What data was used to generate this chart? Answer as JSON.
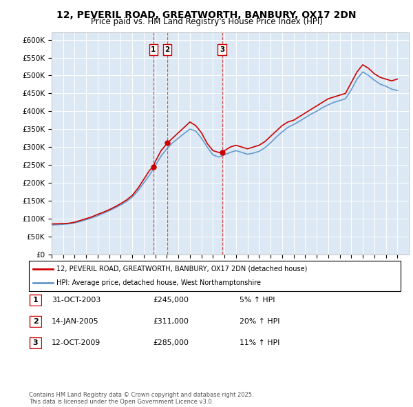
{
  "title": "12, PEVERIL ROAD, GREATWORTH, BANBURY, OX17 2DN",
  "subtitle": "Price paid vs. HM Land Registry's House Price Index (HPI)",
  "legend_line1": "12, PEVERIL ROAD, GREATWORTH, BANBURY, OX17 2DN (detached house)",
  "legend_line2": "HPI: Average price, detached house, West Northamptonshire",
  "xmin": 1995.0,
  "xmax": 2026.0,
  "ylim_max": 620000,
  "plot_bg_color": "#dce9f5",
  "red_line_color": "#cc0000",
  "blue_line_color": "#6699cc",
  "purchase_dates": [
    2003.83,
    2005.04,
    2009.79
  ],
  "purchase_labels": [
    "1",
    "2",
    "3"
  ],
  "purchase_prices": [
    245000,
    311000,
    285000
  ],
  "purchase_date_str": [
    "31-OCT-2003",
    "14-JAN-2005",
    "12-OCT-2009"
  ],
  "purchase_pct": [
    "5%",
    "20%",
    "11%"
  ],
  "footer": "Contains HM Land Registry data © Crown copyright and database right 2025.\nThis data is licensed under the Open Government Licence v3.0.",
  "red_data": {
    "x": [
      1995.0,
      1995.5,
      1996.0,
      1996.5,
      1997.0,
      1997.5,
      1998.0,
      1998.5,
      1999.0,
      1999.5,
      2000.0,
      2000.5,
      2001.0,
      2001.5,
      2002.0,
      2002.5,
      2003.0,
      2003.5,
      2003.83,
      2004.0,
      2004.5,
      2005.04,
      2005.5,
      2006.0,
      2006.5,
      2007.0,
      2007.5,
      2008.0,
      2008.5,
      2009.0,
      2009.5,
      2009.79,
      2010.0,
      2010.5,
      2011.0,
      2011.5,
      2012.0,
      2012.5,
      2013.0,
      2013.5,
      2014.0,
      2014.5,
      2015.0,
      2015.5,
      2016.0,
      2016.5,
      2017.0,
      2017.5,
      2018.0,
      2018.5,
      2019.0,
      2019.5,
      2020.0,
      2020.5,
      2021.0,
      2021.5,
      2022.0,
      2022.5,
      2023.0,
      2023.5,
      2024.0,
      2024.5,
      2025.0
    ],
    "y": [
      85000,
      85500,
      86000,
      87000,
      90000,
      95000,
      100000,
      105000,
      112000,
      118000,
      125000,
      133000,
      142000,
      152000,
      165000,
      185000,
      210000,
      235000,
      245000,
      260000,
      290000,
      311000,
      325000,
      340000,
      355000,
      370000,
      360000,
      340000,
      310000,
      290000,
      285000,
      285000,
      290000,
      300000,
      305000,
      300000,
      295000,
      300000,
      305000,
      315000,
      330000,
      345000,
      360000,
      370000,
      375000,
      385000,
      395000,
      405000,
      415000,
      425000,
      435000,
      440000,
      445000,
      450000,
      480000,
      510000,
      530000,
      520000,
      505000,
      495000,
      490000,
      485000,
      490000
    ]
  },
  "blue_data": {
    "x": [
      1995.0,
      1995.5,
      1996.0,
      1996.5,
      1997.0,
      1997.5,
      1998.0,
      1998.5,
      1999.0,
      1999.5,
      2000.0,
      2000.5,
      2001.0,
      2001.5,
      2002.0,
      2002.5,
      2003.0,
      2003.5,
      2004.0,
      2004.5,
      2005.0,
      2005.5,
      2006.0,
      2006.5,
      2007.0,
      2007.5,
      2008.0,
      2008.5,
      2009.0,
      2009.5,
      2010.0,
      2010.5,
      2011.0,
      2011.5,
      2012.0,
      2012.5,
      2013.0,
      2013.5,
      2014.0,
      2014.5,
      2015.0,
      2015.5,
      2016.0,
      2016.5,
      2017.0,
      2017.5,
      2018.0,
      2018.5,
      2019.0,
      2019.5,
      2020.0,
      2020.5,
      2021.0,
      2021.5,
      2022.0,
      2022.5,
      2023.0,
      2023.5,
      2024.0,
      2024.5,
      2025.0
    ],
    "y": [
      82000,
      83000,
      84000,
      85500,
      88000,
      92000,
      97000,
      102000,
      108000,
      115000,
      122000,
      130000,
      138000,
      148000,
      160000,
      178000,
      200000,
      222000,
      248000,
      275000,
      295000,
      312000,
      325000,
      338000,
      350000,
      345000,
      325000,
      300000,
      278000,
      272000,
      278000,
      285000,
      290000,
      285000,
      280000,
      283000,
      288000,
      298000,
      312000,
      328000,
      342000,
      355000,
      363000,
      372000,
      382000,
      392000,
      400000,
      410000,
      418000,
      425000,
      430000,
      435000,
      460000,
      490000,
      510000,
      500000,
      487000,
      476000,
      470000,
      462000,
      458000
    ]
  }
}
